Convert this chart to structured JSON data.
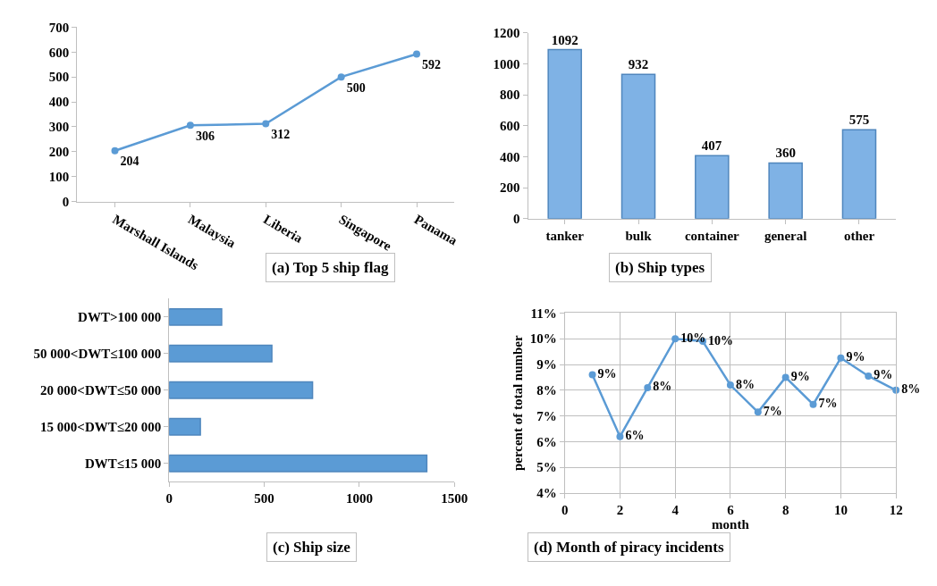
{
  "chart_data": [
    {
      "type": "line",
      "title": "(a) Top 5 ship flag",
      "categories": [
        "Marshall Islands",
        "Malaysia",
        "Liberia",
        "Singapore",
        "Panama"
      ],
      "series": [
        {
          "color": "#5b9bd5",
          "values": [
            204,
            306,
            312,
            500,
            592
          ]
        }
      ],
      "ylim": [
        0,
        700
      ],
      "yticks": [
        0,
        100,
        200,
        300,
        400,
        500,
        600,
        700
      ],
      "grid": false,
      "marker": "circle",
      "data_labels": true
    },
    {
      "type": "bar",
      "title": "(b) Ship types",
      "categories": [
        "tanker",
        "bulk",
        "container",
        "general",
        "other"
      ],
      "series": [
        {
          "color": "#7fb2e5",
          "values": [
            1092,
            932,
            407,
            360,
            575
          ]
        }
      ],
      "ylim": [
        0,
        1200
      ],
      "yticks": [
        0,
        200,
        400,
        600,
        800,
        1000,
        1200
      ],
      "grid": false,
      "data_labels": true
    },
    {
      "type": "bar",
      "orientation": "horizontal",
      "title": "(c) Ship size",
      "categories": [
        "DWT>100 000",
        "50 000<DWT≤100 000",
        "20 000<DWT≤50 000",
        "15 000<DWT≤20 000",
        "DWT≤15 000"
      ],
      "series": [
        {
          "color": "#5b9bd5",
          "values": [
            276,
            540,
            754,
            164,
            1355
          ]
        }
      ],
      "xlim": [
        0,
        1500
      ],
      "xticks": [
        0,
        500,
        1000,
        1500
      ],
      "grid": false
    },
    {
      "type": "line",
      "title": "(d) Month of piracy incidents",
      "xlabel": "month",
      "ylabel": "percent of total number",
      "x": [
        1,
        2,
        3,
        4,
        5,
        6,
        7,
        8,
        9,
        10,
        11,
        12
      ],
      "series": [
        {
          "color": "#5b9bd5",
          "values": [
            8.6,
            6.2,
            8.1,
            10.0,
            9.9,
            8.2,
            7.15,
            8.5,
            7.45,
            9.25,
            8.55,
            8.0
          ],
          "value_labels": [
            "9%",
            "6%",
            "8%",
            "10%",
            "10%",
            "8%",
            "7%",
            "9%",
            "7%",
            "9%",
            "9%",
            "8%"
          ]
        }
      ],
      "xlim": [
        0,
        12
      ],
      "xticks": [
        0,
        2,
        4,
        6,
        8,
        10,
        12
      ],
      "ylim": [
        4,
        11
      ],
      "yticks": [
        {
          "value": 4,
          "label": "4%"
        },
        {
          "value": 5,
          "label": "5%"
        },
        {
          "value": 6,
          "label": "6%"
        },
        {
          "value": 7,
          "label": "7%"
        },
        {
          "value": 8,
          "label": "8%"
        },
        {
          "value": 9,
          "label": "9%"
        },
        {
          "value": 10,
          "label": "10%"
        },
        {
          "value": 11,
          "label": "11%"
        }
      ],
      "grid": true,
      "marker": "circle"
    }
  ]
}
